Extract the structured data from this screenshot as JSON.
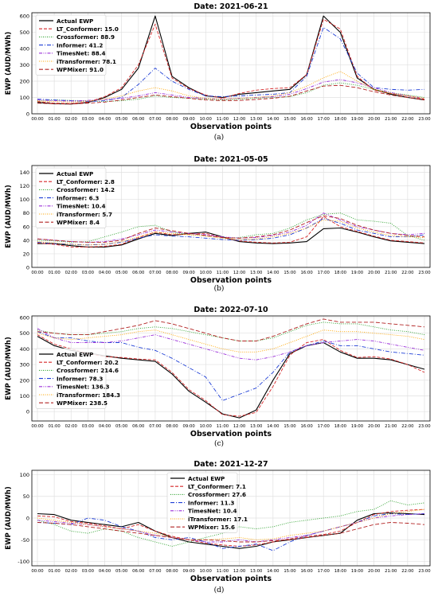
{
  "x_ticks": [
    "00:00",
    "01:00",
    "02:00",
    "03:00",
    "04:00",
    "05:00",
    "06:00",
    "07:00",
    "08:00",
    "09:00",
    "10:00",
    "11:00",
    "12:00",
    "13:00",
    "14:00",
    "15:00",
    "16:00",
    "17:00",
    "18:00",
    "19:00",
    "20:00",
    "21:00",
    "22:00",
    "23:00"
  ],
  "series_styles": [
    {
      "color": "#000000",
      "dash": "",
      "width": 1.1
    },
    {
      "color": "#d62728",
      "dash": "4,2",
      "width": 0.9
    },
    {
      "color": "#2ca02c",
      "dash": "1,1.5",
      "width": 0.9
    },
    {
      "color": "#1f3fd6",
      "dash": "5,2,1,2",
      "width": 0.9
    },
    {
      "color": "#9b30d9",
      "dash": "4,1.5,1,1.5,1,1.5",
      "width": 0.9
    },
    {
      "color": "#ffa500",
      "dash": "1,1.5",
      "width": 0.9
    },
    {
      "color": "#b22222",
      "dash": "5,2.5",
      "width": 0.9
    }
  ],
  "chart_data": [
    {
      "type": "line",
      "title": "Date: 2021-06-21",
      "caption": "(a)",
      "xlabel": "Observation points",
      "ylabel": "EWP (AUD/MWh)",
      "ylim": [
        0,
        620
      ],
      "yticks": [
        0,
        100,
        200,
        300,
        400,
        500,
        600
      ],
      "legend_position": "top-left",
      "series": [
        {
          "name": "Actual EWP",
          "values": [
            70,
            62,
            60,
            70,
            100,
            150,
            280,
            600,
            230,
            160,
            110,
            100,
            120,
            130,
            140,
            150,
            240,
            600,
            500,
            220,
            150,
            120,
            100,
            85
          ]
        },
        {
          "name": "LT_Conformer: 15.0",
          "values": [
            75,
            65,
            63,
            72,
            105,
            160,
            300,
            550,
            220,
            155,
            115,
            95,
            125,
            145,
            155,
            160,
            240,
            580,
            520,
            230,
            145,
            125,
            110,
            90
          ]
        },
        {
          "name": "Crossformer: 88.9",
          "values": [
            80,
            85,
            82,
            80,
            75,
            80,
            90,
            110,
            100,
            95,
            90,
            85,
            90,
            95,
            100,
            105,
            130,
            175,
            190,
            175,
            150,
            130,
            115,
            100
          ]
        },
        {
          "name": "Informer: 41.2",
          "values": [
            90,
            85,
            80,
            75,
            80,
            100,
            180,
            280,
            200,
            150,
            110,
            105,
            110,
            115,
            120,
            130,
            230,
            530,
            460,
            250,
            160,
            150,
            145,
            150
          ]
        },
        {
          "name": "TimesNet: 88.4",
          "values": [
            85,
            80,
            78,
            82,
            88,
            95,
            110,
            130,
            115,
            100,
            95,
            90,
            95,
            100,
            105,
            120,
            155,
            195,
            210,
            190,
            160,
            130,
            110,
            95
          ]
        },
        {
          "name": "iTransformer: 78.1",
          "values": [
            78,
            75,
            72,
            78,
            90,
            110,
            140,
            160,
            140,
            110,
            95,
            90,
            95,
            100,
            110,
            130,
            170,
            220,
            260,
            200,
            150,
            125,
            110,
            95
          ]
        },
        {
          "name": "WPMixer: 91.0",
          "values": [
            65,
            62,
            60,
            65,
            72,
            85,
            100,
            115,
            105,
            95,
            85,
            80,
            82,
            88,
            95,
            108,
            140,
            170,
            175,
            160,
            135,
            115,
            100,
            85
          ]
        }
      ]
    },
    {
      "type": "line",
      "title": "Date: 2021-05-05",
      "caption": "(b)",
      "xlabel": "Observation points",
      "ylabel": "EWP (AUD/MWh)",
      "ylim": [
        0,
        150
      ],
      "yticks": [
        0,
        20,
        40,
        60,
        80,
        100,
        120,
        140
      ],
      "legend_position": "top-left",
      "series": [
        {
          "name": "Actual EWP",
          "values": [
            35,
            35,
            32,
            30,
            30,
            33,
            42,
            50,
            47,
            50,
            52,
            45,
            38,
            36,
            35,
            36,
            38,
            57,
            58,
            52,
            45,
            39,
            37,
            35
          ]
        },
        {
          "name": "LT_Conformer: 2.8",
          "values": [
            36,
            34,
            30,
            30,
            31,
            34,
            44,
            52,
            48,
            49,
            50,
            44,
            39,
            37,
            36,
            37,
            45,
            75,
            60,
            53,
            46,
            40,
            38,
            36
          ]
        },
        {
          "name": "Crossformer: 14.2",
          "values": [
            40,
            39,
            37,
            38,
            45,
            52,
            60,
            62,
            52,
            48,
            46,
            43,
            44,
            48,
            50,
            58,
            70,
            78,
            80,
            70,
            68,
            65,
            47,
            40
          ]
        },
        {
          "name": "Informer: 6.3",
          "values": [
            37,
            35,
            34,
            33,
            34,
            37,
            43,
            48,
            46,
            45,
            43,
            41,
            40,
            41,
            43,
            48,
            58,
            72,
            65,
            55,
            50,
            45,
            45,
            48
          ]
        },
        {
          "name": "TimesNet: 10.4",
          "values": [
            42,
            40,
            38,
            37,
            38,
            42,
            48,
            55,
            52,
            50,
            48,
            45,
            43,
            44,
            47,
            52,
            62,
            80,
            70,
            60,
            55,
            50,
            48,
            50
          ]
        },
        {
          "name": "iTransformer: 5.7",
          "values": [
            38,
            36,
            34,
            33,
            34,
            38,
            45,
            52,
            50,
            48,
            46,
            43,
            41,
            42,
            45,
            50,
            58,
            70,
            68,
            58,
            52,
            47,
            45,
            44
          ]
        },
        {
          "name": "WPMixer: 8.4",
          "values": [
            42,
            40,
            38,
            37,
            37,
            40,
            50,
            58,
            54,
            50,
            47,
            44,
            43,
            45,
            48,
            55,
            66,
            76,
            72,
            62,
            55,
            50,
            47,
            45
          ]
        }
      ]
    },
    {
      "type": "line",
      "title": "Date: 2022-07-10",
      "caption": "(c)",
      "xlabel": "Observation points",
      "ylabel": "EWP (AUD/MWh)",
      "ylim": [
        -60,
        610
      ],
      "yticks": [
        0,
        100,
        200,
        300,
        400,
        500,
        600
      ],
      "legend_position": "bottom-left",
      "series": [
        {
          "name": "Actual EWP",
          "values": [
            480,
            420,
            390,
            375,
            355,
            340,
            330,
            320,
            240,
            130,
            60,
            -15,
            -40,
            10,
            200,
            370,
            420,
            440,
            380,
            340,
            340,
            330,
            300,
            270
          ]
        },
        {
          "name": "LT_Conformer: 20.2",
          "values": [
            490,
            430,
            400,
            370,
            350,
            345,
            335,
            330,
            250,
            140,
            70,
            -20,
            -30,
            -5,
            160,
            360,
            440,
            460,
            390,
            345,
            350,
            335,
            300,
            250
          ]
        },
        {
          "name": "Crossformer: 214.6",
          "values": [
            520,
            500,
            490,
            490,
            500,
            510,
            530,
            540,
            530,
            510,
            490,
            470,
            450,
            450,
            470,
            510,
            550,
            570,
            560,
            560,
            540,
            520,
            510,
            490
          ]
        },
        {
          "name": "Informer: 78.3",
          "values": [
            510,
            470,
            470,
            450,
            440,
            440,
            410,
            390,
            340,
            280,
            220,
            70,
            110,
            150,
            250,
            380,
            420,
            450,
            420,
            420,
            400,
            380,
            370,
            360
          ]
        },
        {
          "name": "TimesNet: 136.3",
          "values": [
            530,
            470,
            440,
            440,
            440,
            450,
            470,
            490,
            460,
            430,
            400,
            370,
            340,
            330,
            350,
            380,
            420,
            440,
            450,
            460,
            450,
            430,
            410,
            390
          ]
        },
        {
          "name": "iTransformer: 184.3",
          "values": [
            500,
            470,
            460,
            470,
            480,
            490,
            510,
            520,
            490,
            460,
            430,
            400,
            380,
            380,
            400,
            440,
            480,
            520,
            510,
            510,
            500,
            490,
            480,
            460
          ]
        },
        {
          "name": "WPMixer: 238.5",
          "values": [
            510,
            500,
            490,
            490,
            510,
            530,
            550,
            580,
            560,
            530,
            500,
            470,
            450,
            450,
            480,
            520,
            560,
            590,
            570,
            570,
            570,
            560,
            550,
            540
          ]
        }
      ]
    },
    {
      "type": "line",
      "title": "Date: 2021-12-27",
      "caption": "(d)",
      "xlabel": "Observation points",
      "ylabel": "EWP (AUD/MWh)",
      "ylim": [
        -110,
        110
      ],
      "yticks": [
        -100,
        -50,
        0,
        50,
        100
      ],
      "legend_position": "top-center",
      "series": [
        {
          "name": "Actual EWP",
          "values": [
            10,
            8,
            -5,
            -10,
            -15,
            -20,
            -10,
            -30,
            -45,
            -55,
            -60,
            -65,
            -70,
            -65,
            -55,
            -50,
            -45,
            -40,
            -35,
            -5,
            10,
            12,
            10,
            8
          ]
        },
        {
          "name": "LT_Conformer: 7.1",
          "values": [
            5,
            3,
            -8,
            -12,
            -18,
            -25,
            -15,
            -30,
            -42,
            -50,
            -58,
            -62,
            -65,
            -62,
            -55,
            -48,
            -42,
            -38,
            -30,
            -10,
            8,
            15,
            18,
            20
          ]
        },
        {
          "name": "Crossformer: 27.6",
          "values": [
            -5,
            -15,
            -30,
            -35,
            -25,
            -30,
            -45,
            -55,
            -65,
            -55,
            -45,
            -35,
            -20,
            -25,
            -20,
            -10,
            -5,
            0,
            5,
            15,
            20,
            40,
            30,
            35
          ]
        },
        {
          "name": "Informer: 11.3",
          "values": [
            -10,
            -12,
            -15,
            0,
            -5,
            -20,
            -30,
            -45,
            -50,
            -45,
            -55,
            -70,
            -65,
            -60,
            -75,
            -55,
            -40,
            -30,
            -20,
            -10,
            5,
            10,
            8,
            10
          ]
        },
        {
          "name": "TimesNet: 10.4",
          "values": [
            -5,
            -8,
            -12,
            -15,
            -20,
            -25,
            -30,
            -40,
            -45,
            -50,
            -55,
            -55,
            -50,
            -55,
            -50,
            -45,
            -40,
            -30,
            -20,
            -10,
            0,
            5,
            8,
            10
          ]
        },
        {
          "name": "iTransformer: 17.1",
          "values": [
            0,
            -5,
            -10,
            -15,
            -20,
            -25,
            -30,
            -35,
            -45,
            -50,
            -50,
            -48,
            -45,
            -50,
            -48,
            -40,
            -35,
            -30,
            -20,
            -10,
            0,
            10,
            15,
            20
          ]
        },
        {
          "name": "WPMixer: 15.6",
          "values": [
            -10,
            -12,
            -15,
            -20,
            -25,
            -30,
            -35,
            -40,
            -45,
            -50,
            -50,
            -52,
            -55,
            -55,
            -52,
            -50,
            -45,
            -40,
            -35,
            -25,
            -15,
            -10,
            -12,
            -15
          ]
        }
      ]
    }
  ]
}
